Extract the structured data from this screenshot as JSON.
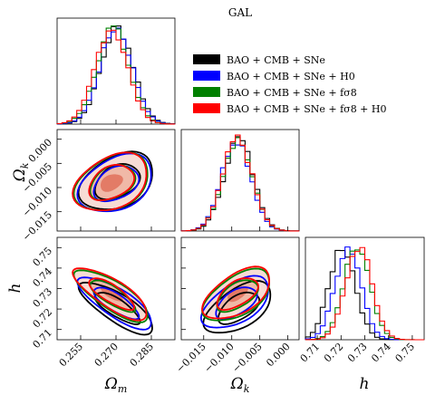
{
  "chart_data": {
    "type": "corner-plot",
    "title": "GAL",
    "parameters": [
      {
        "key": "om",
        "label": "Ωm",
        "ticks": [
          "0.255",
          "0.270",
          "0.285"
        ],
        "range": [
          0.245,
          0.295
        ],
        "tick_values": [
          0.255,
          0.27,
          0.285
        ]
      },
      {
        "key": "ok",
        "label": "Ωk",
        "ticks": [
          "−0.015",
          "−0.010",
          "−0.005",
          "0.000"
        ],
        "range": [
          -0.019,
          0.002
        ],
        "tick_values": [
          -0.015,
          -0.01,
          -0.005,
          0.0
        ]
      },
      {
        "key": "h",
        "label": "h",
        "ticks": [
          "0.71",
          "0.72",
          "0.73",
          "0.74",
          "0.75"
        ],
        "range": [
          0.705,
          0.755
        ],
        "tick_values": [
          0.71,
          0.72,
          0.73,
          0.74,
          0.75
        ]
      }
    ],
    "series": [
      {
        "name": "BAO + CMB + SNe",
        "color": "#000000",
        "mean": {
          "om": 0.2705,
          "ok": -0.0088,
          "h": 0.7205
        },
        "sd": {
          "om": 0.0068,
          "ok": 0.0026,
          "h": 0.0055
        },
        "rho": {
          "om_ok": 0.35,
          "om_h": -0.78,
          "ok_h": 0.55
        }
      },
      {
        "name": "BAO + CMB + SNe + H0",
        "color": "#0000ff",
        "mean": {
          "om": 0.27,
          "ok": -0.0092,
          "h": 0.723
        },
        "sd": {
          "om": 0.0068,
          "ok": 0.0026,
          "h": 0.0055
        },
        "rho": {
          "om_ok": 0.35,
          "om_h": -0.78,
          "ok_h": 0.55
        }
      },
      {
        "name": "BAO + CMB + SNe + fσ8",
        "color": "#008000",
        "mean": {
          "om": 0.2685,
          "ok": -0.009,
          "h": 0.7265
        },
        "sd": {
          "om": 0.0068,
          "ok": 0.0026,
          "h": 0.0055
        },
        "rho": {
          "om_ok": 0.35,
          "om_h": -0.78,
          "ok_h": 0.55
        }
      },
      {
        "name": "BAO + CMB + SNe + fσ8 + H0",
        "color": "#ff0000",
        "mean": {
          "om": 0.268,
          "ok": -0.009,
          "h": 0.7275
        },
        "sd": {
          "om": 0.0068,
          "ok": 0.0026,
          "h": 0.0055
        },
        "rho": {
          "om_ok": 0.35,
          "om_h": -0.78,
          "ok_h": 0.55
        }
      }
    ],
    "legend": "upper-right",
    "contour_levels": [
      "68%",
      "95%"
    ],
    "grid": false
  }
}
